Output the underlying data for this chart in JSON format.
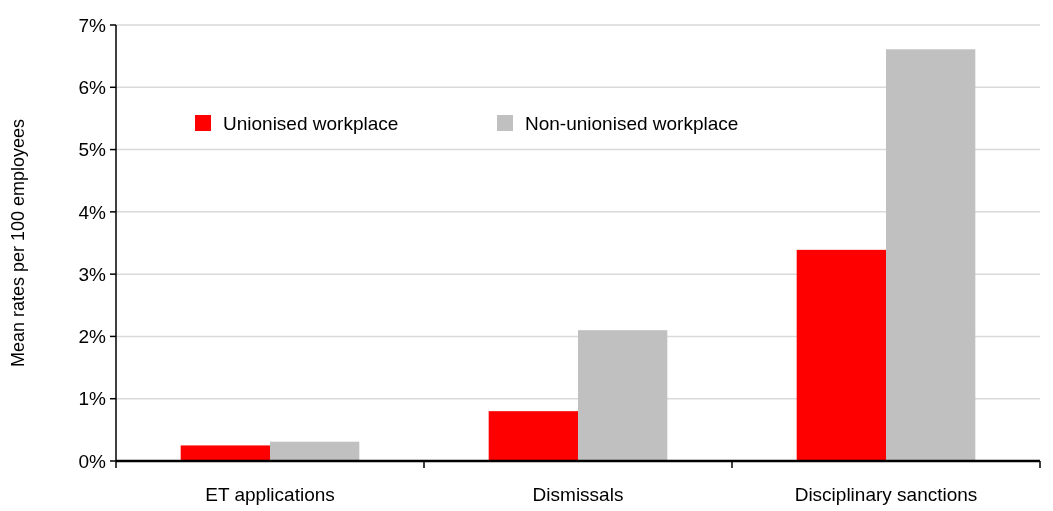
{
  "chart_data": {
    "type": "bar",
    "ylabel": "Mean rates per 100 employees",
    "categories": [
      "ET applications",
      "Dismissals",
      "Disciplinary sanctions"
    ],
    "series": [
      {
        "name": "Unionised workplace",
        "color": "#ff0000",
        "values": [
          0.25,
          0.8,
          3.39
        ]
      },
      {
        "name": "Non-unionised workplace",
        "color": "#c0c0c0",
        "values": [
          0.31,
          2.1,
          6.61
        ]
      }
    ],
    "ylim": [
      0,
      7
    ],
    "yticks": [
      {
        "value": 0,
        "label": "0%"
      },
      {
        "value": 1,
        "label": "1%"
      },
      {
        "value": 2,
        "label": "2%"
      },
      {
        "value": 3,
        "label": "3%"
      },
      {
        "value": 4,
        "label": "4%"
      },
      {
        "value": 5,
        "label": "5%"
      },
      {
        "value": 6,
        "label": "6%"
      },
      {
        "value": 7,
        "label": "7%"
      }
    ],
    "grid": "y",
    "legend": "top left"
  }
}
